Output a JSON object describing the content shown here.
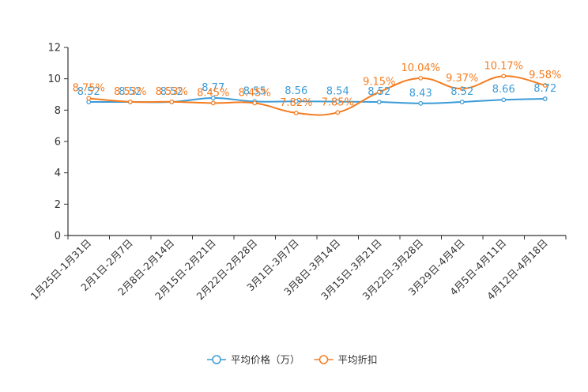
{
  "chart_data": {
    "type": "line",
    "title": "",
    "xlabel": "",
    "ylabel": "",
    "ylim": [
      0,
      12
    ],
    "yticks": [
      0,
      2,
      4,
      6,
      8,
      10,
      12
    ],
    "grid": false,
    "legend_position": "bottom-center",
    "categories": [
      "1月25日-1月31日",
      "2月1日-2月7日",
      "2月8日-2月14日",
      "2月15日-2月21日",
      "2月22日-2月28日",
      "3月1日-3月7日",
      "3月8日-3月14日",
      "3月15日-3月21日",
      "3月22日-3月28日",
      "3月29日-4月4日",
      "4月5日-4月11日",
      "4月12日-4月18日"
    ],
    "series": [
      {
        "name": "平均价格（万）",
        "color": "#3b9bd6",
        "values": [
          8.52,
          8.52,
          8.52,
          8.77,
          8.55,
          8.56,
          8.54,
          8.52,
          8.43,
          8.52,
          8.66,
          8.72
        ],
        "labels": [
          "8.52",
          "8.52",
          "8.52",
          "8.77",
          "8.55",
          "8.56",
          "8.54",
          "8.52",
          "8.43",
          "8.52",
          "8.66",
          "8.72"
        ]
      },
      {
        "name": "平均折扣",
        "color": "#f57c1f",
        "values": [
          8.75,
          8.53,
          8.53,
          8.45,
          8.45,
          7.82,
          7.85,
          9.15,
          10.04,
          9.37,
          10.17,
          9.58
        ],
        "labels": [
          "8.75%",
          "8.53%",
          "8.53%",
          "8.45%",
          "8.45%",
          "7.82%",
          "7.85%",
          "9.15%",
          "10.04%",
          "9.37%",
          "10.17%",
          "9.58%"
        ]
      }
    ]
  }
}
